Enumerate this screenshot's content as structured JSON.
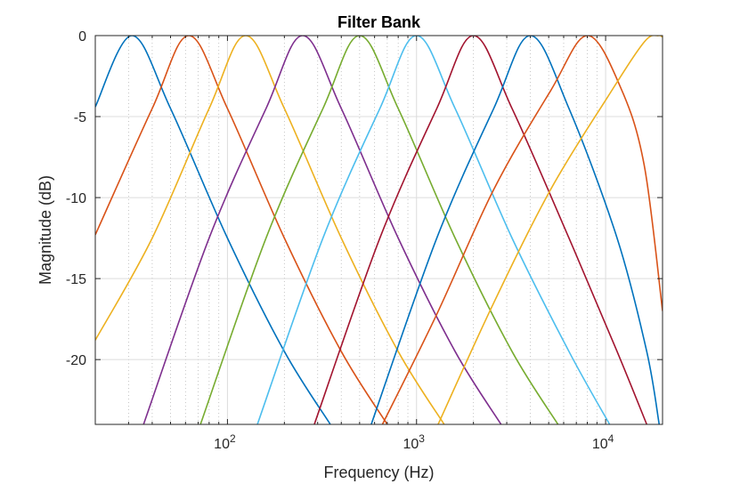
{
  "chart_data": {
    "type": "line",
    "title": "Filter Bank",
    "xlabel": "Frequency (Hz)",
    "ylabel": "Magnitude (dB)",
    "x_scale": "log",
    "xlim": [
      20,
      20000
    ],
    "ylim": [
      -24,
      0
    ],
    "grid": true,
    "x_ticks": [
      {
        "value": 100,
        "base": "10",
        "exp": "2"
      },
      {
        "value": 1000,
        "base": "10",
        "exp": "3"
      },
      {
        "value": 10000,
        "base": "10",
        "exp": "4"
      }
    ],
    "y_ticks": [
      {
        "value": 0,
        "label": "0"
      },
      {
        "value": -5,
        "label": "-5"
      },
      {
        "value": -10,
        "label": "-10"
      },
      {
        "value": -15,
        "label": "-15"
      },
      {
        "value": -20,
        "label": "-20"
      }
    ],
    "series": [
      {
        "color": "#0072BD",
        "points": [
          [
            20,
            -4.4
          ],
          [
            31.25,
            0
          ],
          [
            50,
            -4.5
          ],
          [
            100,
            -12.5
          ],
          [
            200,
            -19.5
          ],
          [
            350,
            -24
          ]
        ]
      },
      {
        "color": "#D95319",
        "points": [
          [
            20,
            -12.3
          ],
          [
            40,
            -4.5
          ],
          [
            62.5,
            0
          ],
          [
            100,
            -4.5
          ],
          [
            200,
            -12.5
          ],
          [
            400,
            -19.5
          ],
          [
            700,
            -24
          ]
        ]
      },
      {
        "color": "#EDB120",
        "points": [
          [
            20,
            -18.8
          ],
          [
            40,
            -12.5
          ],
          [
            80,
            -4.5
          ],
          [
            125,
            0
          ],
          [
            200,
            -4.5
          ],
          [
            400,
            -12.5
          ],
          [
            800,
            -19.5
          ],
          [
            1400,
            -24
          ]
        ]
      },
      {
        "color": "#7E2F8E",
        "points": [
          [
            36,
            -24
          ],
          [
            80,
            -12.5
          ],
          [
            160,
            -4.5
          ],
          [
            250,
            0
          ],
          [
            400,
            -4.5
          ],
          [
            800,
            -12.5
          ],
          [
            1600,
            -19.5
          ],
          [
            2800,
            -24
          ]
        ]
      },
      {
        "color": "#77AC30",
        "points": [
          [
            72,
            -24
          ],
          [
            160,
            -12.5
          ],
          [
            320,
            -4.5
          ],
          [
            500,
            0
          ],
          [
            800,
            -4.5
          ],
          [
            1600,
            -12.5
          ],
          [
            3200,
            -19.5
          ],
          [
            5600,
            -24
          ]
        ]
      },
      {
        "color": "#4DBEEE",
        "points": [
          [
            144,
            -24
          ],
          [
            320,
            -12.5
          ],
          [
            640,
            -4.5
          ],
          [
            1000,
            0
          ],
          [
            1600,
            -4.5
          ],
          [
            3200,
            -12.5
          ],
          [
            6400,
            -19.5
          ],
          [
            10500,
            -24
          ]
        ]
      },
      {
        "color": "#A2142F",
        "points": [
          [
            288,
            -24
          ],
          [
            640,
            -12.5
          ],
          [
            1280,
            -4.5
          ],
          [
            2000,
            0
          ],
          [
            3200,
            -4.5
          ],
          [
            6400,
            -12.5
          ],
          [
            11500,
            -19.5
          ],
          [
            16500,
            -24
          ]
        ]
      },
      {
        "color": "#0072BD",
        "points": [
          [
            576,
            -24
          ],
          [
            1280,
            -12.5
          ],
          [
            2560,
            -4.5
          ],
          [
            4000,
            0
          ],
          [
            6400,
            -4.5
          ],
          [
            11500,
            -12.5
          ],
          [
            16500,
            -19.5
          ],
          [
            19200,
            -24
          ]
        ]
      },
      {
        "color": "#D95319",
        "points": [
          [
            660,
            -24
          ],
          [
            1280,
            -17.2
          ],
          [
            2560,
            -9.5
          ],
          [
            5120,
            -3.4
          ],
          [
            8000,
            0
          ],
          [
            12000,
            -3.2
          ],
          [
            16000,
            -8
          ],
          [
            20000,
            -17
          ]
        ]
      },
      {
        "color": "#EDB120",
        "points": [
          [
            1300,
            -24
          ],
          [
            2560,
            -16.5
          ],
          [
            5120,
            -9.5
          ],
          [
            10240,
            -3.8
          ],
          [
            16000,
            -0.4
          ],
          [
            19000,
            0
          ],
          [
            20000,
            -0.1
          ]
        ]
      }
    ]
  }
}
